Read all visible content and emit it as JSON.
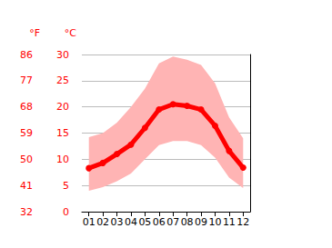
{
  "chart_data": {
    "type": "line",
    "categories": [
      "01",
      "02",
      "03",
      "04",
      "05",
      "06",
      "07",
      "08",
      "09",
      "10",
      "11",
      "12"
    ],
    "values": [
      8.3,
      9.3,
      11.0,
      12.8,
      16.0,
      19.5,
      20.5,
      20.2,
      19.5,
      16.4,
      11.6,
      8.4
    ],
    "color": "#ff0000",
    "marker": "circle",
    "band": {
      "low": [
        4.0,
        4.7,
        5.8,
        7.3,
        10.0,
        12.7,
        13.5,
        13.5,
        12.7,
        10.3,
        6.5,
        4.5
      ],
      "high": [
        14.2,
        15.0,
        17.0,
        20.0,
        23.5,
        28.3,
        29.6,
        29.0,
        28.0,
        24.5,
        18.0,
        14.0
      ],
      "color": "#ffb4b4"
    },
    "y_label": "°C",
    "ylim": [
      0,
      30
    ],
    "yticks": [
      0,
      5,
      10,
      15,
      20,
      25,
      30
    ],
    "y2_label": "°F",
    "y2lim": [
      32,
      86
    ],
    "y2ticks": [
      32,
      41,
      50,
      59,
      68,
      77,
      86
    ],
    "grid": true
  }
}
